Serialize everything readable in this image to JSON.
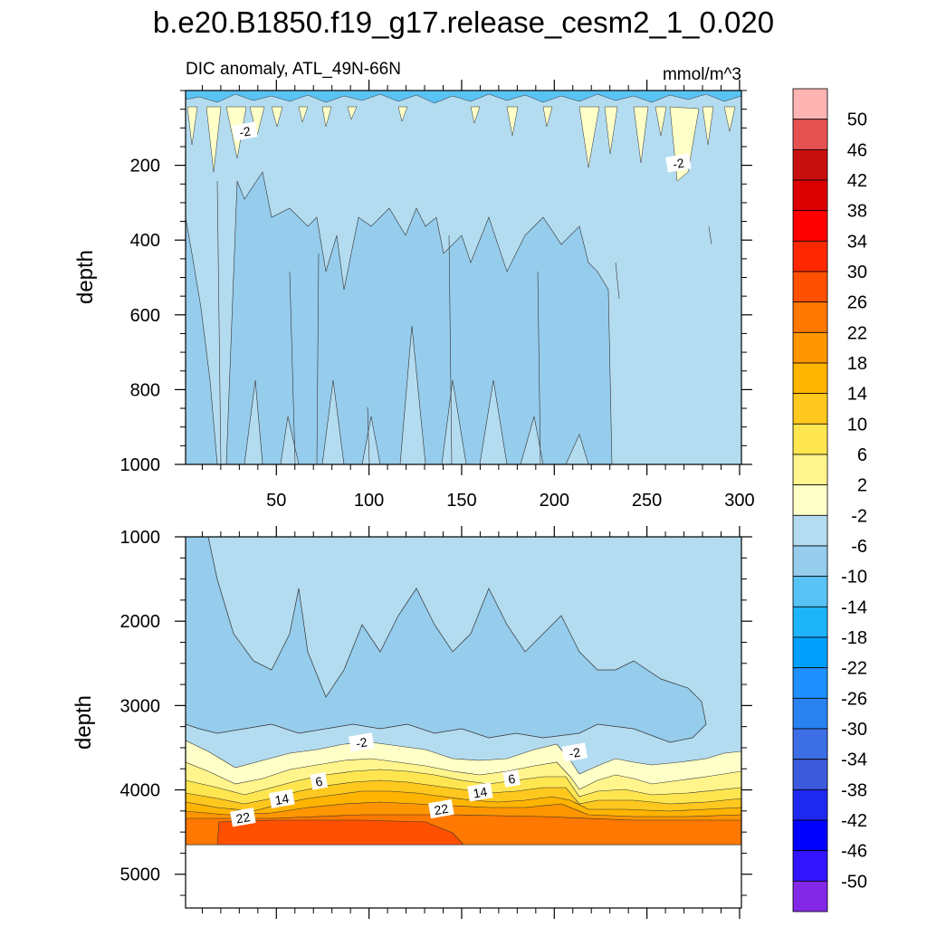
{
  "figure": {
    "title": "b.e20.B1850.f19_g17.release_cesm2_1_0.020"
  },
  "chart_data": [
    {
      "type": "heatmap",
      "panel": "upper",
      "subtitle_left": "DIC anomaly, ATL_49N-66N",
      "subtitle_right": "mmol/m^3",
      "ylabel": "depth",
      "xlim": [
        1,
        301
      ],
      "ylim": [
        0,
        1000
      ],
      "y_inverted": true,
      "xticks": [
        50,
        100,
        150,
        200,
        250,
        300
      ],
      "yticks": [
        200,
        400,
        600,
        800,
        1000
      ],
      "contour_labels": [
        {
          "text": "-2",
          "x": 33,
          "y": 110
        },
        {
          "text": "-2",
          "x": 267,
          "y": 195
        }
      ]
    },
    {
      "type": "heatmap",
      "panel": "lower",
      "ylabel": "depth",
      "xlim": [
        1,
        301
      ],
      "ylim": [
        1000,
        5400
      ],
      "y_inverted": true,
      "yticks": [
        1000,
        2000,
        3000,
        4000,
        5000
      ],
      "contour_labels": [
        {
          "text": "-2",
          "x": 96,
          "y": 3440
        },
        {
          "text": "-2",
          "x": 211,
          "y": 3560
        },
        {
          "text": "6",
          "x": 73,
          "y": 3900
        },
        {
          "text": "6",
          "x": 177,
          "y": 3870
        },
        {
          "text": "14",
          "x": 53,
          "y": 4110
        },
        {
          "text": "14",
          "x": 160,
          "y": 4030
        },
        {
          "text": "22",
          "x": 32,
          "y": 4330
        },
        {
          "text": "22",
          "x": 139,
          "y": 4230
        }
      ]
    }
  ],
  "colorbar": {
    "colors": [
      "#ffb4b4",
      "#e65252",
      "#c80f0f",
      "#dc0000",
      "#ff0000",
      "#ff2800",
      "#ff5000",
      "#ff7800",
      "#ff9600",
      "#ffb400",
      "#ffc81e",
      "#ffe650",
      "#fff58c",
      "#ffffc8",
      "#b4dcf0",
      "#96ccec",
      "#5ac3f5",
      "#1eb4fa",
      "#00a0ff",
      "#1e90ff",
      "#2882f0",
      "#3c6ee6",
      "#3c5adc",
      "#1e28f0",
      "#0000ff",
      "#3214ff",
      "#8228e6"
    ],
    "labels": [
      "50",
      "46",
      "42",
      "38",
      "34",
      "30",
      "26",
      "22",
      "18",
      "14",
      "10",
      "6",
      "2",
      "-2",
      "-6",
      "-10",
      "-14",
      "-18",
      "-22",
      "-26",
      "-30",
      "-34",
      "-38",
      "-42",
      "-46",
      "-50"
    ]
  }
}
